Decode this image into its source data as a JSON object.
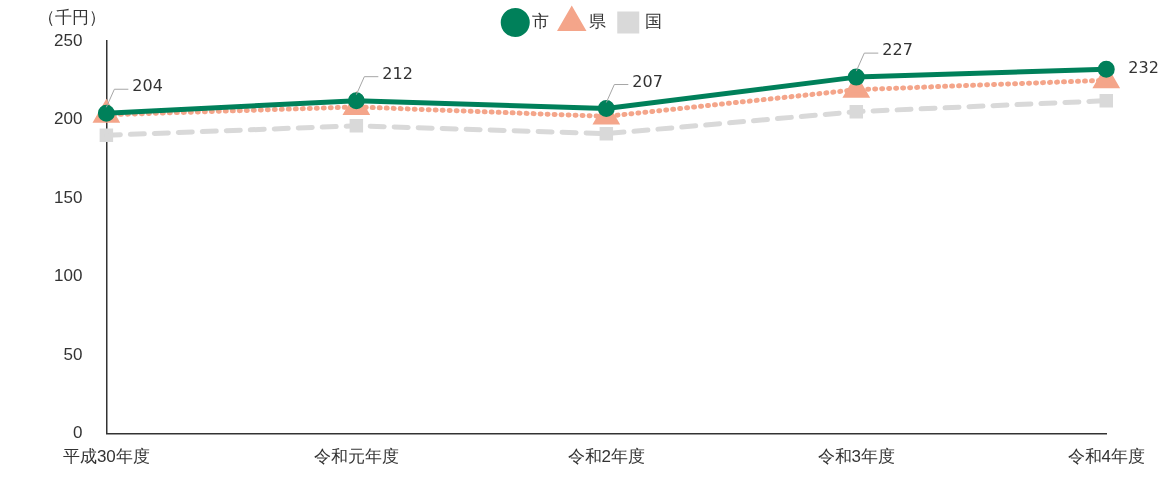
{
  "chart_data": {
    "type": "line",
    "ylabel": "（千円）",
    "categories": [
      "平成30年度",
      "令和元年度",
      "令和2年度",
      "令和3年度",
      "令和4年度"
    ],
    "series": [
      {
        "name": "市",
        "color": "#00805a",
        "values": [
          204,
          212,
          207,
          227,
          232
        ],
        "marker": "circle",
        "line_style": "solid",
        "data_labels": true
      },
      {
        "name": "県",
        "color": "#f4a58a",
        "values": [
          203,
          208,
          202,
          219,
          225
        ],
        "marker": "triangle",
        "line_style": "dotted"
      },
      {
        "name": "国",
        "color": "#d9d9d9",
        "values": [
          190,
          196,
          191,
          205,
          212
        ],
        "marker": "square",
        "line_style": "dashed"
      }
    ],
    "ylim": [
      0,
      250
    ],
    "yticks": [
      0,
      50,
      100,
      150,
      200,
      250
    ],
    "grid": false,
    "legend": "top"
  }
}
